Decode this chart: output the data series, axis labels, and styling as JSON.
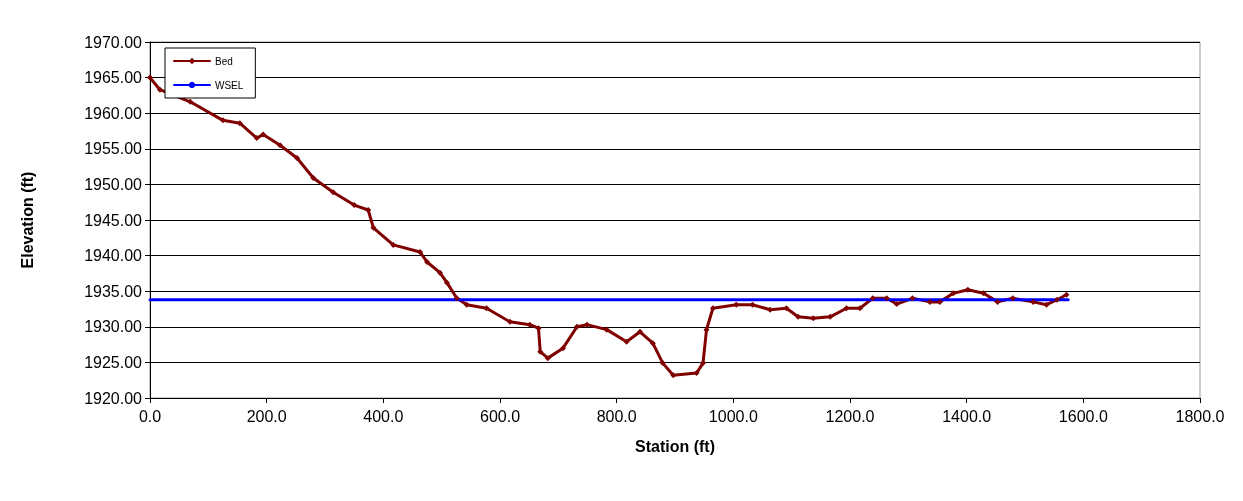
{
  "chart_data": {
    "type": "line",
    "xlabel": "Station (ft)",
    "ylabel": "Elevation (ft)",
    "xlim": [
      0,
      1800
    ],
    "ylim": [
      1920,
      1970
    ],
    "xticks": [
      {
        "value": 0,
        "label": "0.0"
      },
      {
        "value": 200,
        "label": "200.0"
      },
      {
        "value": 400,
        "label": "400.0"
      },
      {
        "value": 600,
        "label": "600.0"
      },
      {
        "value": 800,
        "label": "800.0"
      },
      {
        "value": 1000,
        "label": "1000.0"
      },
      {
        "value": 1200,
        "label": "1200.0"
      },
      {
        "value": 1400,
        "label": "1400.0"
      },
      {
        "value": 1600,
        "label": "1600.0"
      },
      {
        "value": 1800,
        "label": "1800.0"
      }
    ],
    "yticks": [
      {
        "value": 1920,
        "label": "1920.00"
      },
      {
        "value": 1925,
        "label": "1925.00"
      },
      {
        "value": 1930,
        "label": "1930.00"
      },
      {
        "value": 1935,
        "label": "1935.00"
      },
      {
        "value": 1940,
        "label": "1940.00"
      },
      {
        "value": 1945,
        "label": "1945.00"
      },
      {
        "value": 1950,
        "label": "1950.00"
      },
      {
        "value": 1955,
        "label": "1955.00"
      },
      {
        "value": 1960,
        "label": "1960.00"
      },
      {
        "value": 1965,
        "label": "1965.00"
      },
      {
        "value": 1970,
        "label": "1970.00"
      }
    ],
    "grid": "y",
    "legend": "top left",
    "line_style": "solid",
    "series": [
      {
        "name": "Bed",
        "color": "#800000",
        "marker": "diamond",
        "x": [
          0,
          17,
          69,
          125,
          154,
          183,
          194,
          223,
          252,
          280,
          314,
          350,
          374,
          383,
          417,
          463,
          475,
          497,
          509,
          526,
          543,
          577,
          617,
          651,
          666,
          669,
          682,
          708,
          732,
          749,
          783,
          817,
          840,
          862,
          879,
          897,
          937,
          948,
          954,
          965,
          1005,
          1033,
          1063,
          1091,
          1111,
          1137,
          1166,
          1194,
          1217,
          1239,
          1263,
          1280,
          1307,
          1337,
          1354,
          1377,
          1402,
          1429,
          1453,
          1479,
          1514,
          1537,
          1555,
          1571
        ],
        "values": [
          1965.0,
          1963.3,
          1961.6,
          1959.0,
          1958.6,
          1956.5,
          1957.0,
          1955.5,
          1953.7,
          1950.9,
          1948.9,
          1947.1,
          1946.4,
          1943.9,
          1941.5,
          1940.5,
          1939.1,
          1937.6,
          1936.2,
          1934.0,
          1933.1,
          1932.6,
          1930.7,
          1930.3,
          1929.8,
          1926.5,
          1925.6,
          1927.0,
          1930.0,
          1930.3,
          1929.6,
          1927.9,
          1929.3,
          1927.7,
          1924.9,
          1923.2,
          1923.5,
          1924.9,
          1929.6,
          1932.6,
          1933.1,
          1933.1,
          1932.4,
          1932.6,
          1931.4,
          1931.2,
          1931.4,
          1932.6,
          1932.6,
          1934.0,
          1934.0,
          1933.2,
          1934.0,
          1933.5,
          1933.5,
          1934.7,
          1935.2,
          1934.7,
          1933.5,
          1934.0,
          1933.5,
          1933.1,
          1933.8,
          1934.5
        ]
      },
      {
        "name": "WSEL",
        "color": "#0000ff",
        "marker": "none",
        "x": [
          0,
          1574
        ],
        "values": [
          1933.8,
          1933.8
        ]
      }
    ]
  }
}
